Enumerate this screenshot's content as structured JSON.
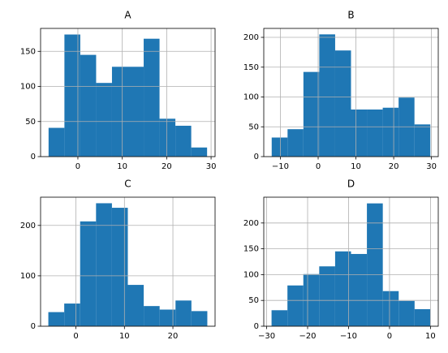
{
  "chart_data": [
    {
      "type": "histogram",
      "title": "A",
      "color": "#1f77b4",
      "grid": true,
      "bins": [
        -6.6,
        -3.03,
        0.54,
        4.11,
        7.68,
        11.25,
        14.82,
        18.39,
        21.96,
        25.53,
        29.1
      ],
      "values": [
        41,
        174,
        145,
        105,
        128,
        128,
        168,
        54,
        44,
        13
      ],
      "xlim": [
        -8.4,
        30.9
      ],
      "ylim": [
        0,
        182.7
      ],
      "xticks": [
        0,
        10,
        20,
        30
      ],
      "yticks": [
        0,
        50,
        100,
        150
      ]
    },
    {
      "type": "histogram",
      "title": "B",
      "color": "#1f77b4",
      "grid": true,
      "bins": [
        -12.3,
        -8.1,
        -3.9,
        0.3,
        4.5,
        8.7,
        12.9,
        17.1,
        21.3,
        25.5,
        29.7
      ],
      "values": [
        32,
        46,
        142,
        205,
        178,
        79,
        79,
        82,
        99,
        54
      ],
      "xlim": [
        -14.4,
        31.8
      ],
      "ylim": [
        0,
        215
      ],
      "xticks": [
        {
          "value": -10,
          "label": "−10"
        },
        0,
        10,
        20,
        30
      ],
      "yticks": [
        0,
        50,
        100,
        150,
        200
      ]
    },
    {
      "type": "histogram",
      "title": "C",
      "color": "#1f77b4",
      "grid": true,
      "bins": [
        -5.7,
        -2.42,
        0.86,
        4.14,
        7.42,
        10.7,
        13.98,
        17.26,
        20.54,
        23.82,
        27.1
      ],
      "values": [
        28,
        45,
        208,
        244,
        235,
        82,
        40,
        33,
        51,
        30
      ],
      "xlim": [
        -7.3,
        28.7
      ],
      "ylim": [
        0,
        256
      ],
      "xticks": [
        0,
        10,
        20
      ],
      "yticks": [
        0,
        100,
        200
      ]
    },
    {
      "type": "histogram",
      "title": "D",
      "color": "#1f77b4",
      "grid": true,
      "bins": [
        -28.8,
        -24.92,
        -21.04,
        -17.16,
        -13.28,
        -9.4,
        -5.52,
        -1.64,
        2.24,
        6.12,
        10
      ],
      "values": [
        31,
        79,
        101,
        116,
        145,
        140,
        238,
        68,
        49,
        33
      ],
      "xlim": [
        -30.7,
        11.9
      ],
      "ylim": [
        0,
        250
      ],
      "xticks": [
        {
          "value": -30,
          "label": "−30"
        },
        {
          "value": -20,
          "label": "−20"
        },
        {
          "value": -10,
          "label": "−10"
        },
        0,
        10
      ],
      "yticks": [
        0,
        50,
        100,
        150,
        200
      ]
    }
  ]
}
